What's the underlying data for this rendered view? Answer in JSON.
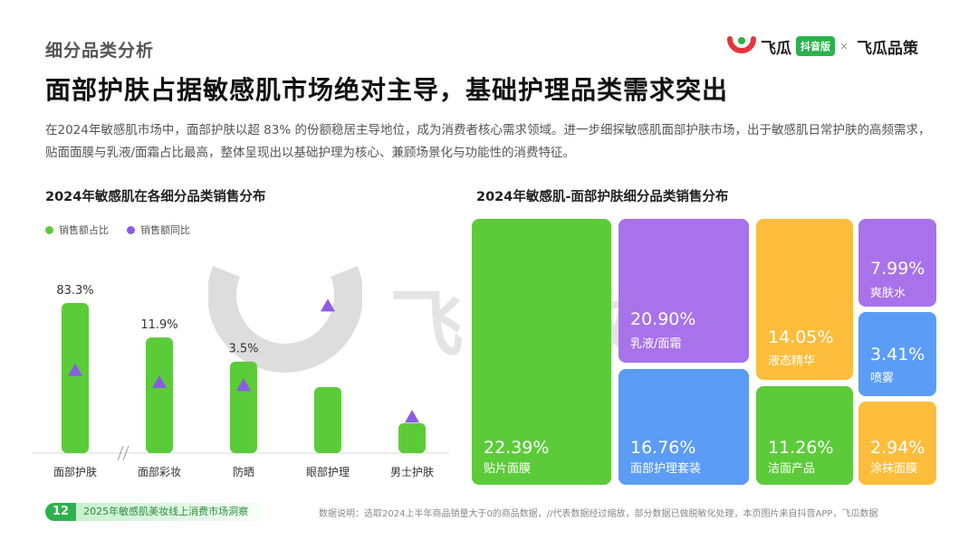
{
  "header": {
    "section": "细分品类分析",
    "headline": "面部护肤占据敏感肌市场绝对主导，基础护理品类需求突出",
    "description": "在2024年敏感肌市场中，面部护肤以超 83% 的份额稳居主导地位，成为消费者核心需求领域。进一步细探敏感肌面部护肤市场，出于敏感肌日常护肤的高频需求，贴面面膜与乳液/面霜占比最高，整体呈现出以基础护理为核心、兼顾场景化与功能性的消费特征。"
  },
  "logo": {
    "brand1": "飞瓜",
    "badge": "抖音版",
    "sep": "×",
    "brand2": "飞瓜品策"
  },
  "watermark": "飞瓜数据",
  "chart_data": [
    {
      "type": "bar",
      "title": "2024年敏感肌在各细分品类销售分布",
      "legend": [
        "销售额占比",
        "销售额同比"
      ],
      "legend_position": "top-left",
      "categories": [
        "面部护肤",
        "面部彩妆",
        "防晒",
        "眼部护理",
        "男士护肤"
      ],
      "series": [
        {
          "name": "销售额占比",
          "values": [
            83.3,
            11.9,
            3.5,
            null,
            null
          ],
          "labels": [
            "83.3%",
            "11.9%",
            "3.5%",
            "",
            ""
          ],
          "relative_height": [
            1.0,
            0.77,
            0.61,
            0.44,
            0.2
          ]
        },
        {
          "name": "销售额同比",
          "marker": "triangle",
          "relative_level": [
            0.55,
            0.47,
            0.45,
            0.98,
            0.24
          ]
        }
      ],
      "axis_break_note": "//",
      "colors": {
        "bar": "#5ccb3a",
        "marker": "#8a5ce6"
      }
    },
    {
      "type": "treemap",
      "title": "2024年敏感肌-面部护肤细分品类销售分布",
      "items": [
        {
          "label": "贴片面膜",
          "value": "22.39%",
          "color": "#5ccb3a"
        },
        {
          "label": "乳液/面霜",
          "value": "20.90%",
          "color": "#a872ea"
        },
        {
          "label": "面部护理套装",
          "value": "16.76%",
          "color": "#5b9cf7"
        },
        {
          "label": "液态精华",
          "value": "14.05%",
          "color": "#fdbd3c"
        },
        {
          "label": "洁面产品",
          "value": "11.26%",
          "color": "#5ccb3a"
        },
        {
          "label": "爽肤水",
          "value": "7.99%",
          "color": "#a872ea"
        },
        {
          "label": "喷雾",
          "value": "3.41%",
          "color": "#5b9cf7"
        },
        {
          "label": "涂抹面膜",
          "value": "2.94%",
          "color": "#fdbd3c"
        }
      ]
    }
  ],
  "footer": {
    "page": "12",
    "report": "2025年敏感肌美妆线上消费市场洞察",
    "note": "数据说明：选取2024上半年商品销量大于0的商品数据，//代表数据经过缩放，部分数据已做脱敏化处理，本页图片来自抖音APP，飞瓜数据"
  }
}
